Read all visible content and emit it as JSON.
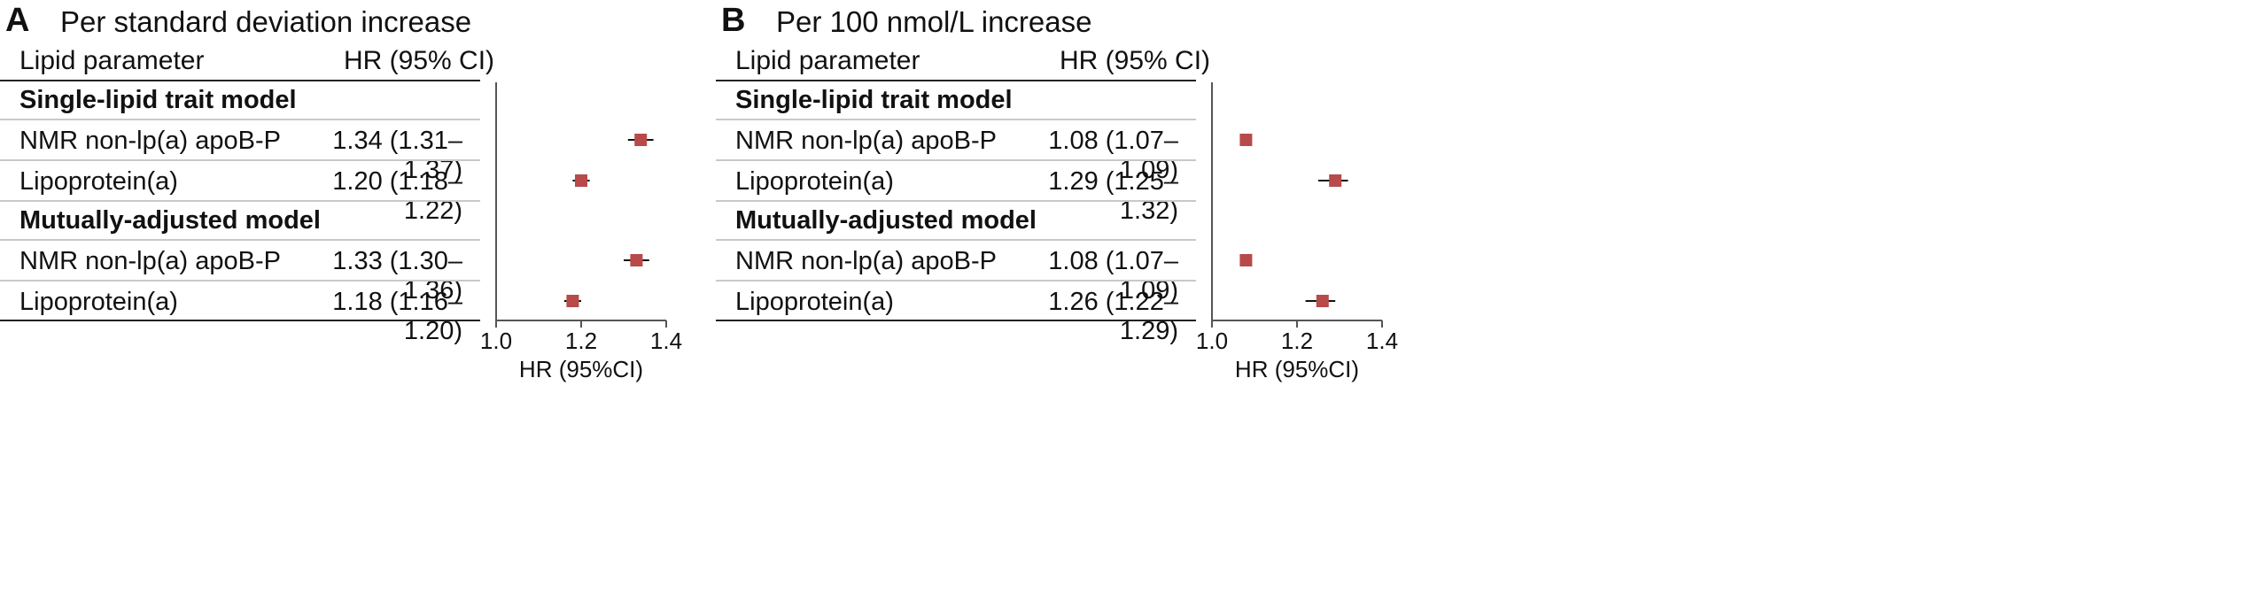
{
  "panels": [
    {
      "letter": "A",
      "title": "Per standard deviation increase",
      "col_param": "Lipid parameter",
      "col_hr": "HR (95% CI)",
      "sections": [
        {
          "title": "Single-lipid trait model",
          "rows": [
            {
              "label": "NMR non-lp(a) apoB-P",
              "hr_text": "1.34 (1.31–1.37)"
            },
            {
              "label": "Lipoprotein(a)",
              "hr_text": "1.20 (1.18–1.22)"
            }
          ]
        },
        {
          "title": "Mutually-adjusted model",
          "rows": [
            {
              "label": "NMR non-lp(a) apoB-P",
              "hr_text": "1.33 (1.30–1.36)"
            },
            {
              "label": "Lipoprotein(a)",
              "hr_text": "1.18 (1.16–1.20)"
            }
          ]
        }
      ]
    },
    {
      "letter": "B",
      "title": "Per 100 nmol/L increase",
      "col_param": "Lipid parameter",
      "col_hr": "HR (95% CI)",
      "sections": [
        {
          "title": "Single-lipid trait model",
          "rows": [
            {
              "label": "NMR non-lp(a) apoB-P",
              "hr_text": "1.08 (1.07–1.09)"
            },
            {
              "label": "Lipoprotein(a)",
              "hr_text": "1.29 (1.25–1.32)"
            }
          ]
        },
        {
          "title": "Mutually-adjusted model",
          "rows": [
            {
              "label": "NMR non-lp(a) apoB-P",
              "hr_text": "1.08 (1.07–1.09)"
            },
            {
              "label": "Lipoprotein(a)",
              "hr_text": "1.26 (1.22–1.29)"
            }
          ]
        }
      ]
    }
  ],
  "chart_data": [
    {
      "type": "scatter",
      "subtype": "forest",
      "title": "Per standard deviation increase",
      "xlabel": "HR (95%CI)",
      "xlim": [
        1.0,
        1.4
      ],
      "xticks": [
        1.0,
        1.2,
        1.4
      ],
      "tick_labels": [
        "1.0",
        "1.2",
        "1.4"
      ],
      "reference_line": 1.0,
      "marker_color": "#b84a4a",
      "points": [
        {
          "section": "Single-lipid trait model",
          "label": "NMR non-lp(a) apoB-P",
          "hr": 1.34,
          "lo": 1.31,
          "hi": 1.37
        },
        {
          "section": "Single-lipid trait model",
          "label": "Lipoprotein(a)",
          "hr": 1.2,
          "lo": 1.18,
          "hi": 1.22
        },
        {
          "section": "Mutually-adjusted model",
          "label": "NMR non-lp(a) apoB-P",
          "hr": 1.33,
          "lo": 1.3,
          "hi": 1.36
        },
        {
          "section": "Mutually-adjusted model",
          "label": "Lipoprotein(a)",
          "hr": 1.18,
          "lo": 1.16,
          "hi": 1.2
        }
      ]
    },
    {
      "type": "scatter",
      "subtype": "forest",
      "title": "Per 100 nmol/L increase",
      "xlabel": "HR (95%CI)",
      "xlim": [
        1.0,
        1.4
      ],
      "xticks": [
        1.0,
        1.2,
        1.4
      ],
      "tick_labels": [
        "1.0",
        "1.2",
        "1.4"
      ],
      "reference_line": 1.0,
      "marker_color": "#b84a4a",
      "points": [
        {
          "section": "Single-lipid trait model",
          "label": "NMR non-lp(a) apoB-P",
          "hr": 1.08,
          "lo": 1.07,
          "hi": 1.09
        },
        {
          "section": "Single-lipid trait model",
          "label": "Lipoprotein(a)",
          "hr": 1.29,
          "lo": 1.25,
          "hi": 1.32
        },
        {
          "section": "Mutually-adjusted model",
          "label": "NMR non-lp(a) apoB-P",
          "hr": 1.08,
          "lo": 1.07,
          "hi": 1.09
        },
        {
          "section": "Mutually-adjusted model",
          "label": "Lipoprotein(a)",
          "hr": 1.26,
          "lo": 1.22,
          "hi": 1.29
        }
      ]
    }
  ]
}
